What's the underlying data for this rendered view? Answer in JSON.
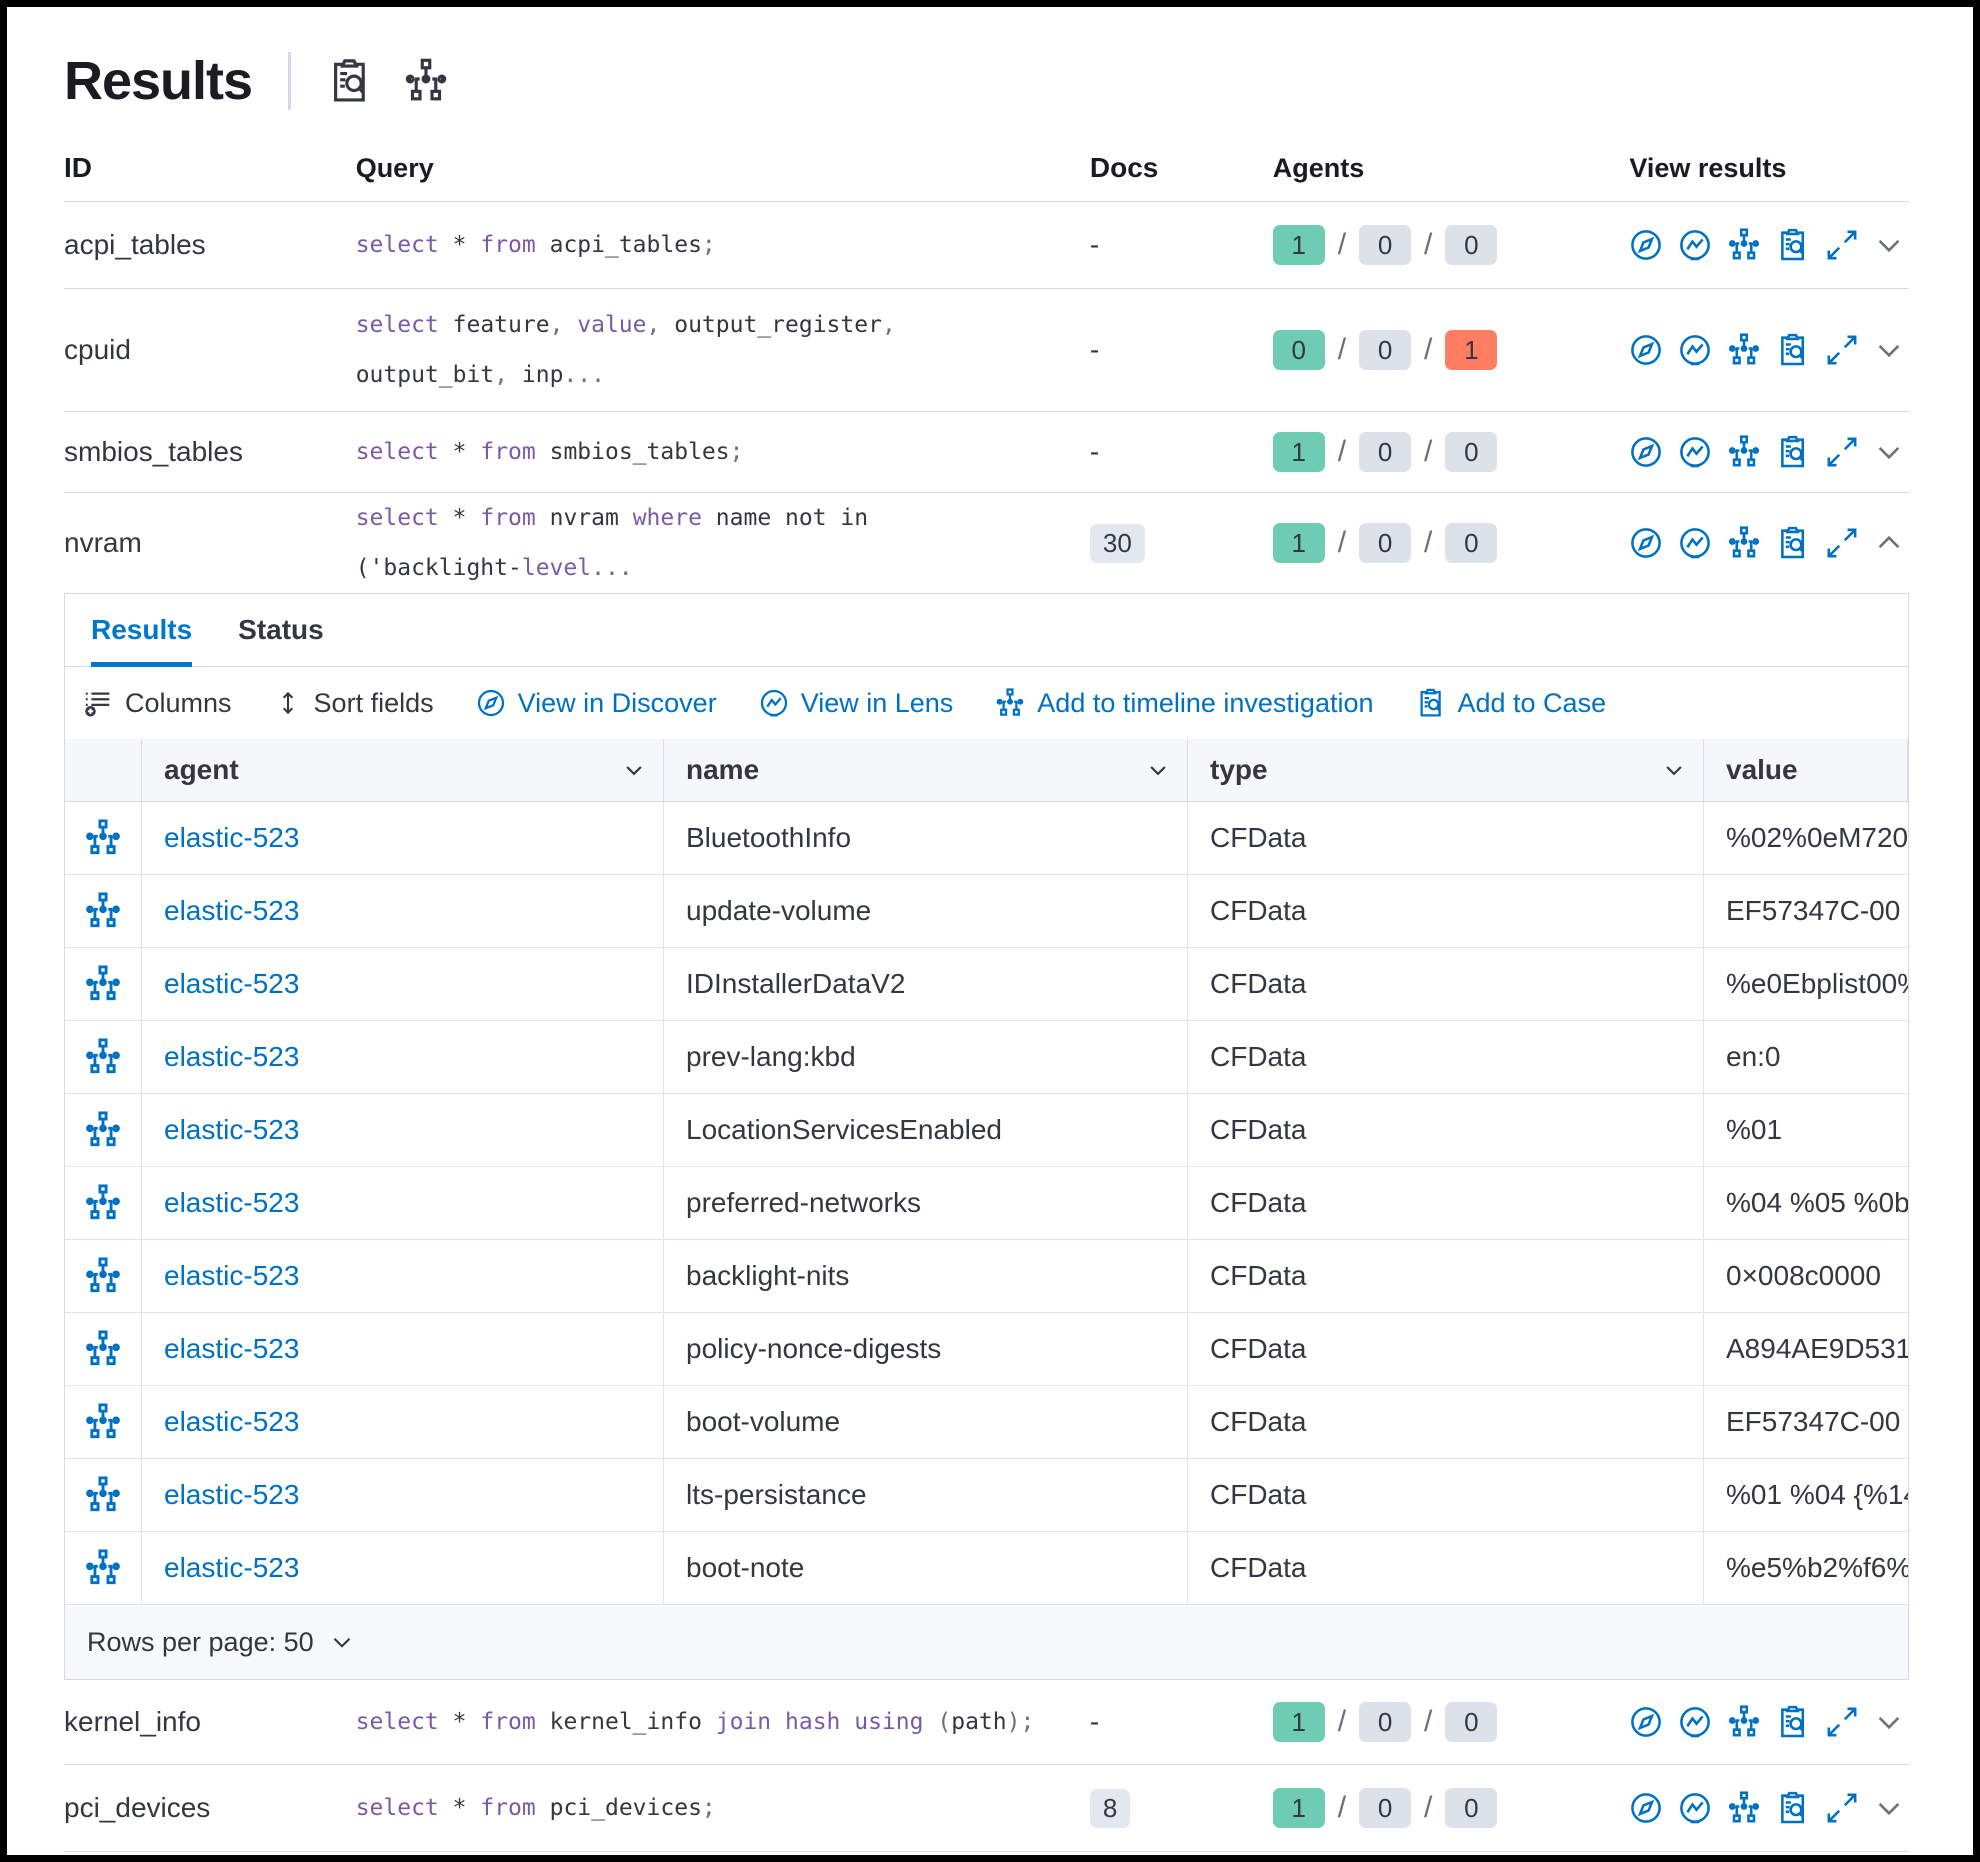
{
  "page": {
    "title": "Results"
  },
  "table": {
    "columns": {
      "id": "ID",
      "query": "Query",
      "docs": "Docs",
      "agents": "Agents",
      "view": "View results"
    },
    "rows": [
      {
        "id": "acpi_tables",
        "docs": "-",
        "expanded": false,
        "agents": [
          {
            "v": "1",
            "c": "green"
          },
          {
            "v": "0",
            "c": "grey"
          },
          {
            "v": "0",
            "c": "grey"
          }
        ],
        "query_tokens": [
          [
            "select",
            "kw"
          ],
          [
            " ",
            "pl"
          ],
          [
            "*",
            "pl"
          ],
          [
            " ",
            "pl"
          ],
          [
            "from",
            "kw"
          ],
          [
            " acpi_tables",
            "pl"
          ],
          [
            ";",
            "pu"
          ]
        ]
      },
      {
        "id": "cpuid",
        "docs": "-",
        "expanded": false,
        "agents": [
          {
            "v": "0",
            "c": "green"
          },
          {
            "v": "0",
            "c": "grey"
          },
          {
            "v": "1",
            "c": "red"
          }
        ],
        "query_tokens": [
          [
            "select",
            "kw"
          ],
          [
            " feature",
            "pl"
          ],
          [
            ", ",
            "pu"
          ],
          [
            "value",
            "kw"
          ],
          [
            ", ",
            "pu"
          ],
          [
            "output_register",
            "pl"
          ],
          [
            ",\n",
            "pu"
          ],
          [
            "output_bit",
            "pl"
          ],
          [
            ", ",
            "pu"
          ],
          [
            "inp",
            "pl"
          ],
          [
            "...",
            "pu"
          ]
        ]
      },
      {
        "id": "smbios_tables",
        "docs": "-",
        "expanded": false,
        "agents": [
          {
            "v": "1",
            "c": "green"
          },
          {
            "v": "0",
            "c": "grey"
          },
          {
            "v": "0",
            "c": "grey"
          }
        ],
        "query_tokens": [
          [
            "select",
            "kw"
          ],
          [
            " ",
            "pl"
          ],
          [
            "*",
            "pl"
          ],
          [
            " ",
            "pl"
          ],
          [
            "from",
            "kw"
          ],
          [
            " smbios_tables",
            "pl"
          ],
          [
            ";",
            "pu"
          ]
        ]
      },
      {
        "id": "nvram",
        "docs": "30",
        "expanded": true,
        "agents": [
          {
            "v": "1",
            "c": "green"
          },
          {
            "v": "0",
            "c": "grey"
          },
          {
            "v": "0",
            "c": "grey"
          }
        ],
        "query_tokens": [
          [
            "select",
            "kw"
          ],
          [
            " ",
            "pl"
          ],
          [
            "*",
            "pl"
          ],
          [
            " ",
            "pl"
          ],
          [
            "from",
            "kw"
          ],
          [
            " nvram ",
            "pl"
          ],
          [
            "where",
            "kw"
          ],
          [
            " name not in\n",
            "pl"
          ],
          [
            "('backlight-",
            "pl"
          ],
          [
            "level",
            "kw"
          ],
          [
            "...",
            "pu"
          ]
        ]
      },
      {
        "id": "kernel_info",
        "docs": "-",
        "expanded": false,
        "agents": [
          {
            "v": "1",
            "c": "green"
          },
          {
            "v": "0",
            "c": "grey"
          },
          {
            "v": "0",
            "c": "grey"
          }
        ],
        "query_tokens": [
          [
            "select",
            "kw"
          ],
          [
            " ",
            "pl"
          ],
          [
            "*",
            "pl"
          ],
          [
            " ",
            "pl"
          ],
          [
            "from",
            "kw"
          ],
          [
            " kernel_info ",
            "pl"
          ],
          [
            "join",
            "kw"
          ],
          [
            " ",
            "pl"
          ],
          [
            "hash",
            "kw"
          ],
          [
            " ",
            "pl"
          ],
          [
            "using",
            "kw"
          ],
          [
            " (",
            "pu"
          ],
          [
            "path",
            "pl"
          ],
          [
            ");",
            "pu"
          ]
        ]
      },
      {
        "id": "pci_devices",
        "docs": "8",
        "expanded": false,
        "agents": [
          {
            "v": "1",
            "c": "green"
          },
          {
            "v": "0",
            "c": "grey"
          },
          {
            "v": "0",
            "c": "grey"
          }
        ],
        "query_tokens": [
          [
            "select",
            "kw"
          ],
          [
            " ",
            "pl"
          ],
          [
            "*",
            "pl"
          ],
          [
            " ",
            "pl"
          ],
          [
            "from",
            "kw"
          ],
          [
            " pci_devices",
            "pl"
          ],
          [
            ";",
            "pu"
          ]
        ]
      }
    ]
  },
  "panel": {
    "tabs": [
      {
        "label": "Results"
      },
      {
        "label": "Status"
      }
    ],
    "toolbar": {
      "columns": "Columns",
      "sort_fields": "Sort fields",
      "view_in_discover": "View in Discover",
      "view_in_lens": "View in Lens",
      "add_to_timeline": "Add to timeline investigation",
      "add_to_case": "Add to Case"
    },
    "grid": {
      "columns": [
        "agent",
        "name",
        "type",
        "value"
      ],
      "rows": [
        {
          "agent": "elastic-523",
          "name": "BluetoothInfo",
          "type": "CFData",
          "value": "%02%0eM720"
        },
        {
          "agent": "elastic-523",
          "name": "update-volume",
          "type": "CFData",
          "value": "EF57347C-00"
        },
        {
          "agent": "elastic-523",
          "name": "IDInstallerDataV2",
          "type": "CFData",
          "value": "%e0Ebplist00%"
        },
        {
          "agent": "elastic-523",
          "name": "prev-lang:kbd",
          "type": "CFData",
          "value": "en:0"
        },
        {
          "agent": "elastic-523",
          "name": "LocationServicesEnabled",
          "type": "CFData",
          "value": "%01"
        },
        {
          "agent": "elastic-523",
          "name": "preferred-networks",
          "type": "CFData",
          "value": "%04 %05 %0b"
        },
        {
          "agent": "elastic-523",
          "name": "backlight-nits",
          "type": "CFData",
          "value": "0×008c0000"
        },
        {
          "agent": "elastic-523",
          "name": "policy-nonce-digests",
          "type": "CFData",
          "value": "A894AE9D531"
        },
        {
          "agent": "elastic-523",
          "name": "boot-volume",
          "type": "CFData",
          "value": "EF57347C-00"
        },
        {
          "agent": "elastic-523",
          "name": "lts-persistance",
          "type": "CFData",
          "value": "%01 %04 {%14"
        },
        {
          "agent": "elastic-523",
          "name": "boot-note",
          "type": "CFData",
          "value": "%e5%b2%f6%"
        }
      ],
      "footer_label": "Rows per page: 50"
    }
  },
  "colors": {
    "primary": "#0071c2",
    "tab_active": "#0077cc",
    "badge_green": "#6dccb1",
    "badge_grey": "#dde1ea",
    "badge_red": "#ff7e62",
    "keyword_purple": "#7c5aa3"
  }
}
